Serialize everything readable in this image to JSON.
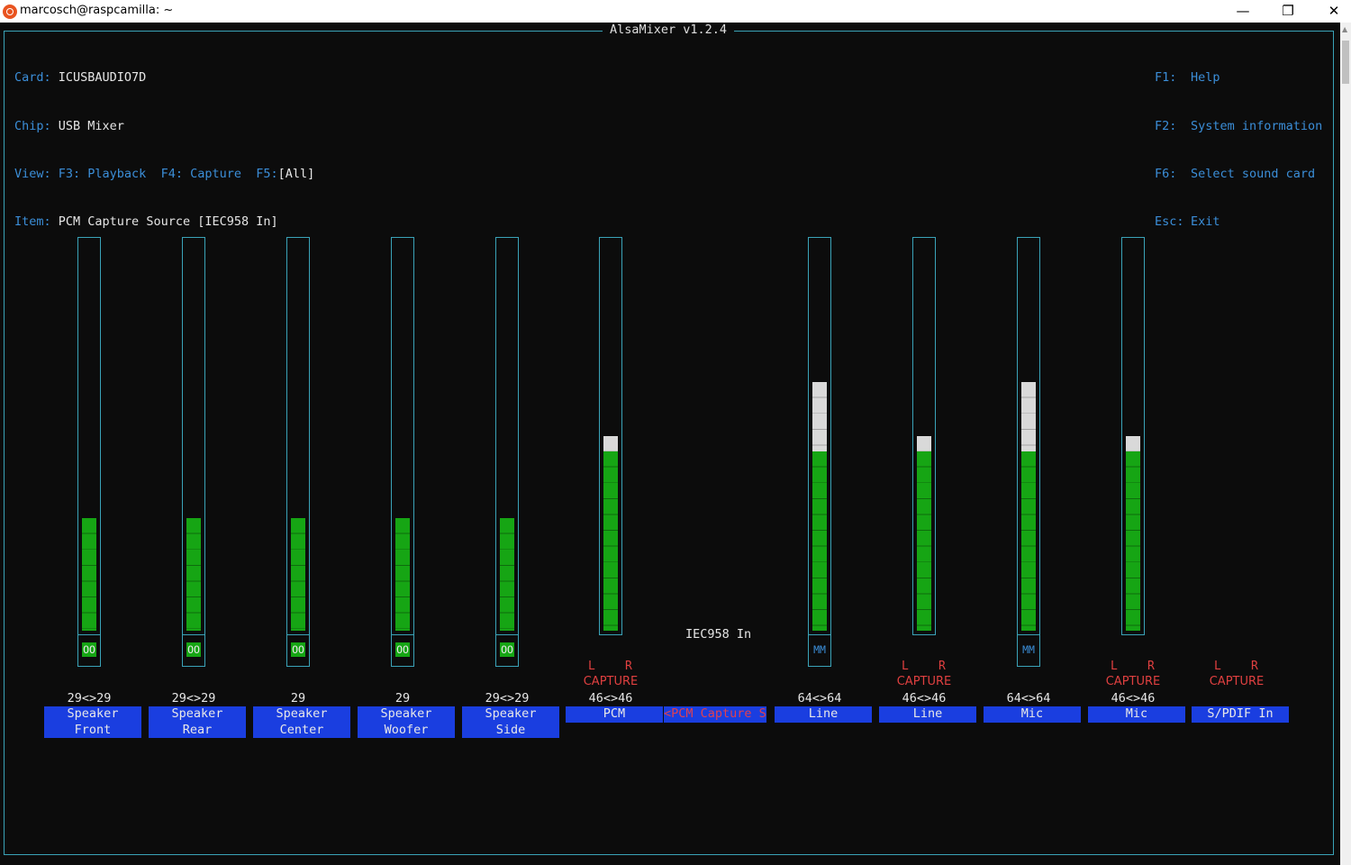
{
  "window": {
    "title": "marcosch@raspcamilla: ~",
    "minimize": "—",
    "restore": "❐",
    "close": "✕"
  },
  "app_title": "AlsaMixer v1.2.4",
  "info_left": {
    "card_key": "Card:",
    "card_value": "ICUSBAUDIO7D",
    "chip_key": "Chip:",
    "chip_value": "USB Mixer",
    "view_key": "View:",
    "view_f3": "F3: Playback",
    "view_f4": "F4: Capture",
    "view_f5": "F5:",
    "view_f5_value": "[All]",
    "item_key": "Item:",
    "item_value": "PCM Capture Source [IEC958 In]"
  },
  "info_right": [
    {
      "key": "F1:",
      "label": "Help"
    },
    {
      "key": "F2:",
      "label": "System information"
    },
    {
      "key": "F6:",
      "label": "Select sound card"
    },
    {
      "key": "Esc:",
      "label": "Exit"
    }
  ],
  "controls": [
    {
      "name_line1": "Speaker",
      "name_line2": "Front",
      "value": "29<>29",
      "level": 0.29,
      "mute": "OO"
    },
    {
      "name_line1": "Speaker",
      "name_line2": "Rear",
      "value": "29<>29",
      "level": 0.29,
      "mute": "OO"
    },
    {
      "name_line1": "Speaker",
      "name_line2": "Center",
      "value": "29",
      "level": 0.29,
      "mute": "OO"
    },
    {
      "name_line1": "Speaker",
      "name_line2": "Woofer",
      "value": "29",
      "level": 0.29,
      "mute": "OO"
    },
    {
      "name_line1": "Speaker",
      "name_line2": "Side",
      "value": "29<>29",
      "level": 0.29,
      "mute": "OO"
    },
    {
      "name_line1": "PCM",
      "value": "46<>46",
      "level": 0.46,
      "peak": 0.5,
      "capture_l": "L",
      "capture_r": "R",
      "capture": "CAPTURE"
    },
    {
      "name_line1": "Line",
      "value": "64<>64",
      "level": 0.46,
      "peak": 0.64,
      "mute": "MM"
    },
    {
      "name_line1": "Line",
      "value": "46<>46",
      "level": 0.46,
      "peak": 0.5,
      "capture_l": "L",
      "capture_r": "R",
      "capture": "CAPTURE"
    },
    {
      "name_line1": "Mic",
      "value": "64<>64",
      "level": 0.46,
      "peak": 0.64,
      "mute": "MM"
    },
    {
      "name_line1": "Mic",
      "value": "46<>46",
      "level": 0.46,
      "peak": 0.5,
      "capture_l": "L",
      "capture_r": "R",
      "capture": "CAPTURE"
    },
    {
      "name_line1": "S/PDIF In",
      "capture_l": "L",
      "capture_r": "R",
      "capture": "CAPTURE"
    }
  ],
  "enum_control": {
    "selected": "IEC958 In",
    "name": "<PCM Capture S>"
  }
}
